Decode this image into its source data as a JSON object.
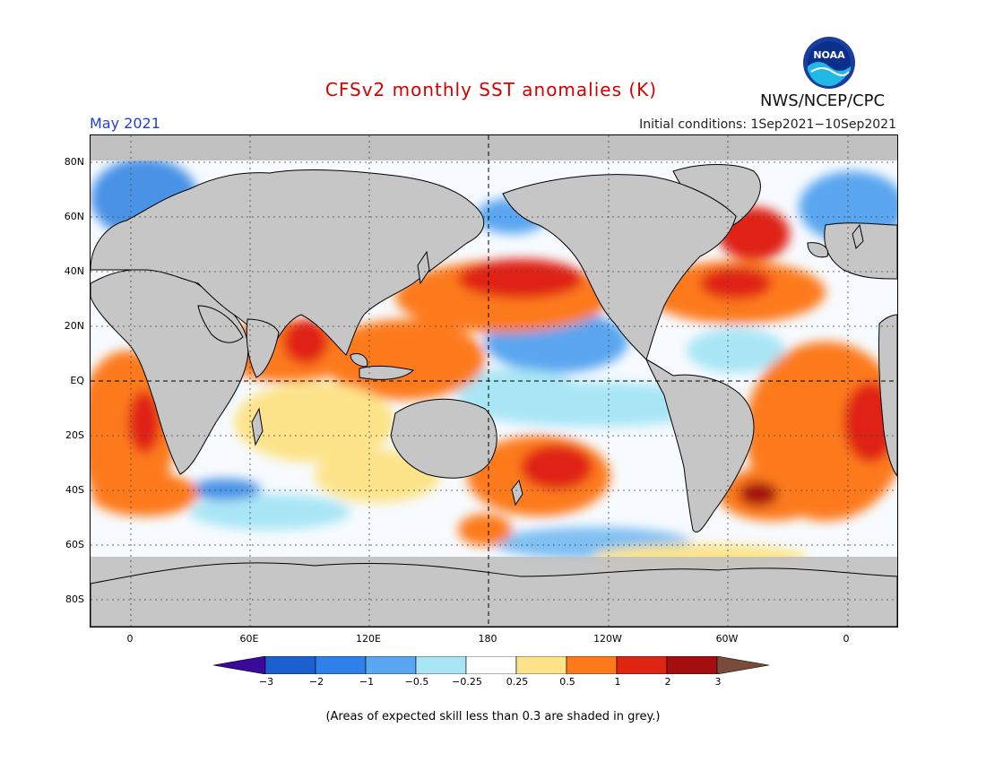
{
  "header": {
    "title": "CFSv2 monthly SST anomalies (K)",
    "target_month": "May 2021",
    "initial_conditions": "Initial conditions: 1Sep2021−10Sep2021",
    "organization": "NWS/NCEP/CPC",
    "logo_text": "NOAA"
  },
  "axes": {
    "lat_labels": [
      "80N",
      "60N",
      "40N",
      "20N",
      "EQ",
      "20S",
      "40S",
      "60S",
      "80S"
    ],
    "lon_labels": [
      "0",
      "60E",
      "120E",
      "180",
      "120W",
      "60W",
      "0"
    ]
  },
  "colorbar": {
    "labels": [
      "−3",
      "−2",
      "−1",
      "−0.5",
      "−0.25",
      "0.25",
      "0.5",
      "1",
      "2",
      "3"
    ],
    "colors": [
      "#3a0a9a",
      "#1c5fd0",
      "#2f80e8",
      "#5aa6f0",
      "#a9e6f5",
      "#ffffff",
      "#fde48a",
      "#fd7a1a",
      "#e02412",
      "#a50e0e",
      "#7a4a3a"
    ]
  },
  "footnote": "(Areas of expected skill less than 0.3 are shaded in grey.)"
}
